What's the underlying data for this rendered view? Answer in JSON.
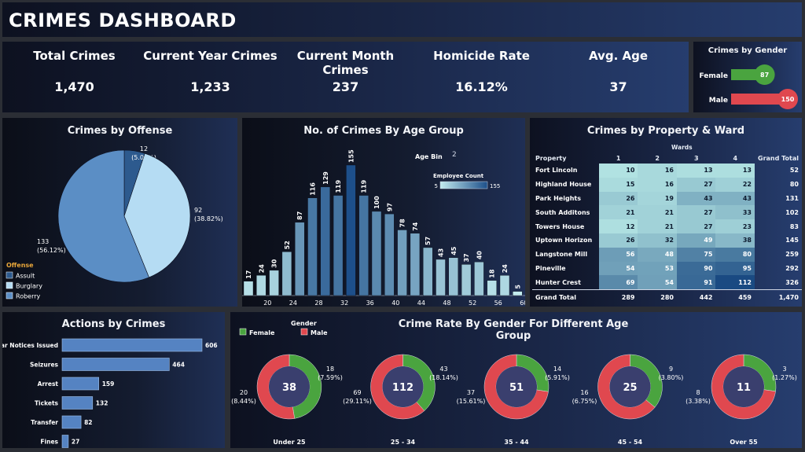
{
  "header": {
    "title": "CRIMES DASHBOARD"
  },
  "kpis": [
    {
      "label": "Total Crimes",
      "value": "1,470"
    },
    {
      "label": "Current Year Crimes",
      "value": "1,233"
    },
    {
      "label": "Current Month Crimes",
      "value": "237"
    },
    {
      "label": "Homicide Rate",
      "value": "16.12%"
    },
    {
      "label": "Avg. Age",
      "value": "37"
    }
  ],
  "gender": {
    "title": "Crimes by Gender",
    "rows": [
      {
        "label": "Female",
        "value": 87,
        "text": "87",
        "color": "#4aa43f"
      },
      {
        "label": "Male",
        "value": 150,
        "text": "150",
        "color": "#e0484f"
      }
    ]
  },
  "offense": {
    "title": "Crimes by Offense",
    "legend_title": "Offense",
    "legend": [
      {
        "label": "Assult",
        "color": "#2d5a8e"
      },
      {
        "label": "Burglary",
        "color": "#b5dcf3"
      },
      {
        "label": "Roberry",
        "color": "#5b8ec5"
      }
    ],
    "chart_data": {
      "type": "pie",
      "slices": [
        {
          "category": "Assult",
          "value": 12,
          "label": "12",
          "pct": "(5.06%)"
        },
        {
          "category": "Burglary",
          "value": 92,
          "label": "92",
          "pct": "(38.82%)"
        },
        {
          "category": "Roberry",
          "value": 133,
          "label": "133",
          "pct": "(56.12%)"
        }
      ]
    }
  },
  "age_group": {
    "title": "No. of  Crimes By Age Group",
    "bin_label": "Age Bin",
    "bin_value": "2",
    "legend_title": "Employee Count",
    "legend_min": "5",
    "legend_max": "155",
    "chart_data": {
      "type": "bar",
      "x": [
        18,
        20,
        22,
        24,
        26,
        28,
        30,
        32,
        34,
        36,
        38,
        40,
        42,
        44,
        46,
        48,
        50,
        52,
        54,
        56,
        58,
        60
      ],
      "values": [
        17,
        24,
        30,
        52,
        87,
        116,
        129,
        119,
        155,
        119,
        100,
        97,
        78,
        74,
        57,
        43,
        45,
        37,
        40,
        18,
        24,
        5
      ],
      "tick_labels": [
        "20",
        "24",
        "28",
        "32",
        "36",
        "40",
        "44",
        "48",
        "52",
        "56",
        "60"
      ],
      "ylim": [
        0,
        155
      ]
    }
  },
  "ward": {
    "title": "Crimes by Property & Ward",
    "wards_label": "Wards",
    "columns": [
      "Property",
      "1",
      "2",
      "3",
      "4",
      "Grand Total"
    ],
    "rows": [
      {
        "name": "Fort Lincoln",
        "values": [
          10,
          16,
          13,
          13
        ],
        "total": "52"
      },
      {
        "name": "Highland House",
        "values": [
          15,
          16,
          27,
          22
        ],
        "total": "80"
      },
      {
        "name": "Park Heights",
        "values": [
          26,
          19,
          43,
          43
        ],
        "total": "131"
      },
      {
        "name": "South Additons",
        "values": [
          21,
          21,
          27,
          33
        ],
        "total": "102"
      },
      {
        "name": "Towers House",
        "values": [
          12,
          21,
          27,
          23
        ],
        "total": "83"
      },
      {
        "name": "Uptown Horizon",
        "values": [
          26,
          32,
          49,
          38
        ],
        "total": "145"
      },
      {
        "name": "Langstone Mill",
        "values": [
          56,
          48,
          75,
          80
        ],
        "total": "259"
      },
      {
        "name": "Pineville",
        "values": [
          54,
          53,
          90,
          95
        ],
        "total": "292"
      },
      {
        "name": "Hunter Crest",
        "values": [
          69,
          54,
          91,
          112
        ],
        "total": "326"
      }
    ],
    "grand_total": {
      "label": "Grand Total",
      "values": [
        "289",
        "280",
        "442",
        "459"
      ],
      "total": "1,470"
    }
  },
  "actions": {
    "title": "Actions by Crimes",
    "chart_data": {
      "type": "bar",
      "categories": [
        "Bar Notices Issued",
        "Seizures",
        "Arrest",
        "Tickets",
        "Transfer",
        "Fines"
      ],
      "values": [
        606,
        464,
        159,
        132,
        82,
        27
      ]
    }
  },
  "rate": {
    "title": "Crime Rate By Gender For Different Age Group",
    "legend_title": "Gender",
    "legend": [
      {
        "label": "Female",
        "color": "#4aa43f"
      },
      {
        "label": "Male",
        "color": "#e0484f"
      }
    ],
    "chart_data": {
      "type": "pie",
      "groups": [
        {
          "label": "Under 25",
          "total": "38",
          "female": 18,
          "male": 20,
          "female_pct": "(7.59%)",
          "male_pct": "(8.44%)"
        },
        {
          "label": "25 - 34",
          "total": "112",
          "female": 43,
          "male": 69,
          "female_pct": "(18.14%)",
          "male_pct": "(29.11%)"
        },
        {
          "label": "35 - 44",
          "total": "51",
          "female": 14,
          "male": 37,
          "female_pct": "(5.91%)",
          "male_pct": "(15.61%)"
        },
        {
          "label": "45 - 54",
          "total": "25",
          "female": 9,
          "male": 16,
          "female_pct": "(3.80%)",
          "male_pct": "(6.75%)"
        },
        {
          "label": "Over 55",
          "total": "11",
          "female": 3,
          "male": 8,
          "female_pct": "(1.27%)",
          "male_pct": "(3.38%)"
        }
      ]
    }
  }
}
